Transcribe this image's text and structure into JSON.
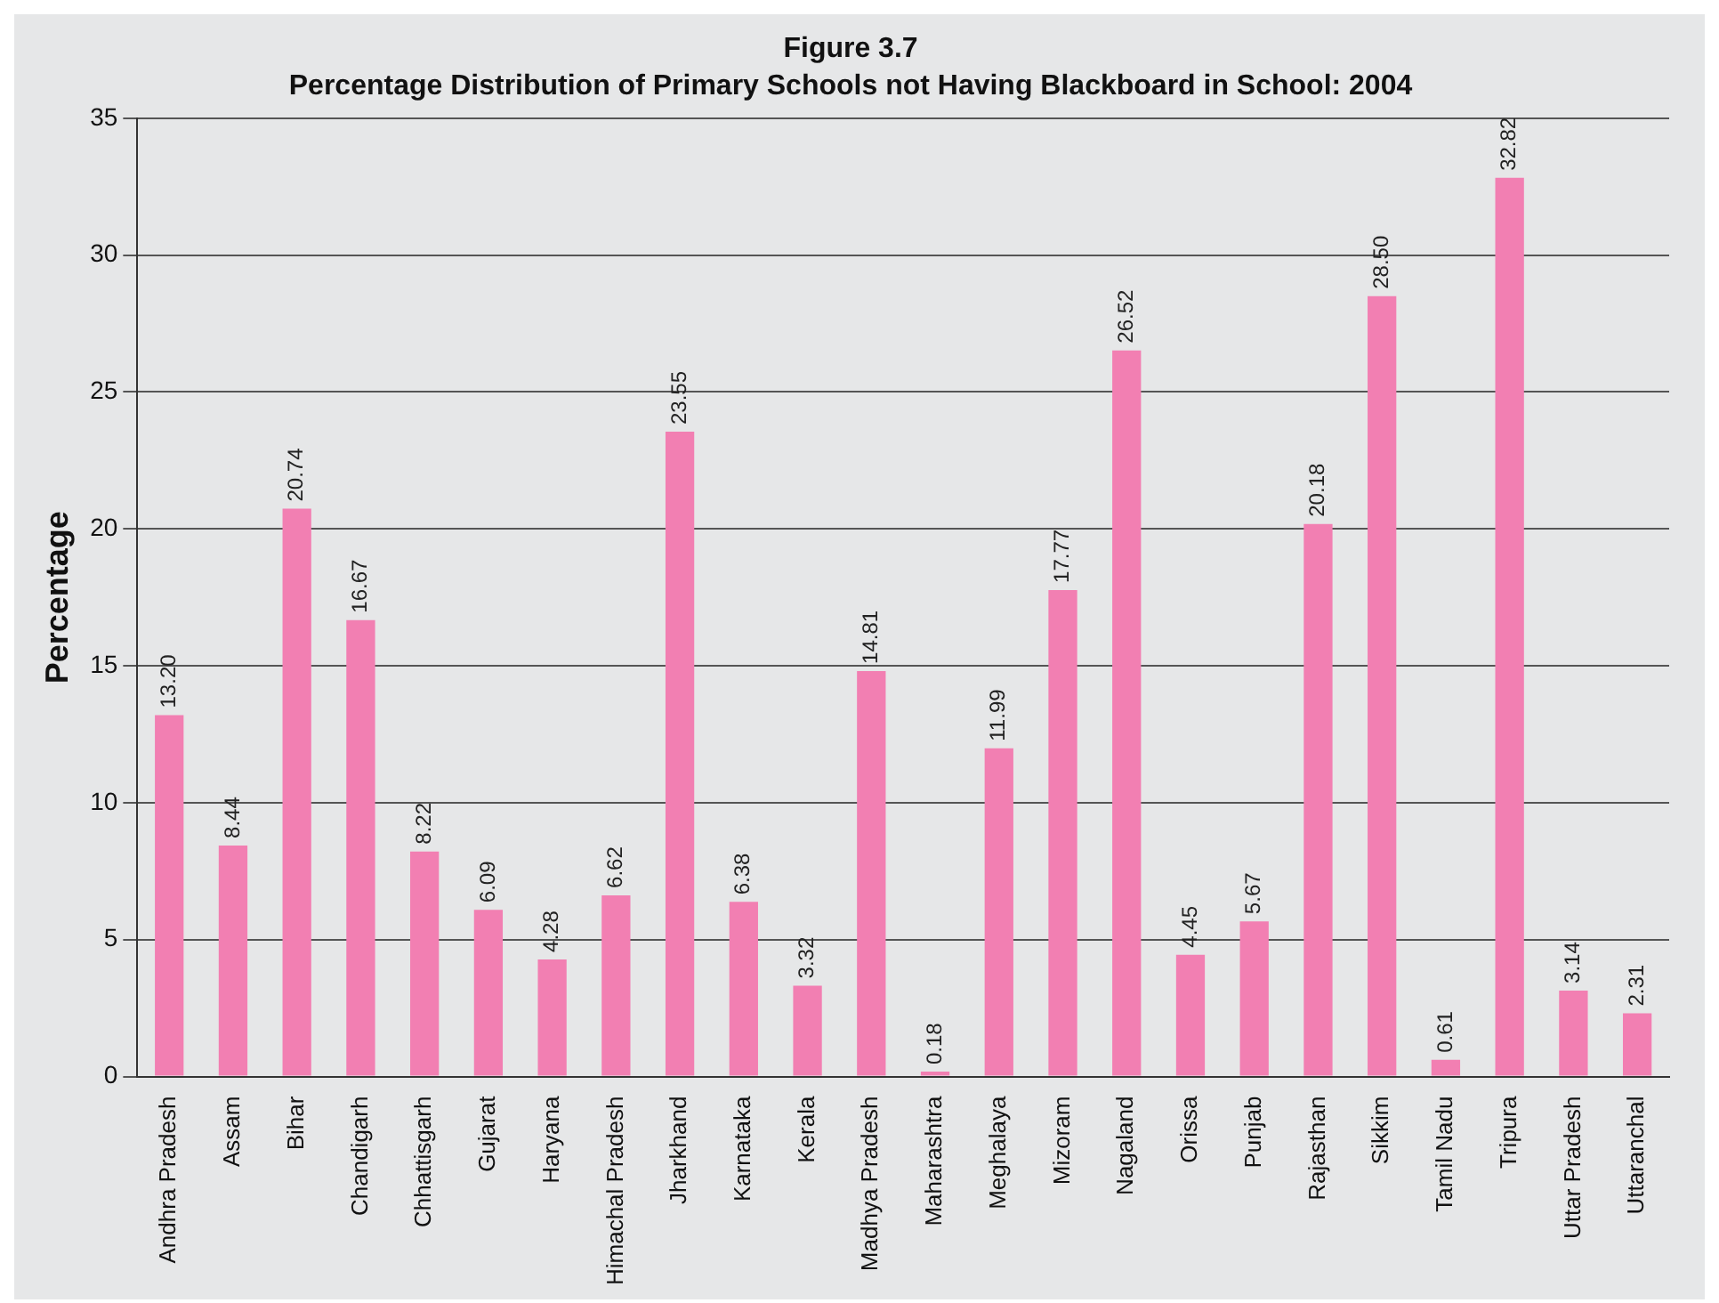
{
  "chart_data": {
    "type": "bar",
    "title": "Figure 3.7",
    "subtitle": "Percentage Distribution of Primary Schools not Having Blackboard in School: 2004",
    "ylabel": "Percentage",
    "categories": [
      "Andhra Pradesh",
      "Assam",
      "Bihar",
      "Chandigarh",
      "Chhattisgarh",
      "Gujarat",
      "Haryana",
      "Himachal Pradesh",
      "Jharkhand",
      "Karnataka",
      "Kerala",
      "Madhya Pradesh",
      "Maharashtra",
      "Meghalaya",
      "Mizoram",
      "Nagaland",
      "Orissa",
      "Punjab",
      "Rajasthan",
      "Sikkim",
      "Tamil Nadu",
      "Tripura",
      "Uttar Pradesh",
      "Uttaranchal"
    ],
    "values": [
      13.2,
      8.44,
      20.74,
      16.67,
      8.22,
      6.09,
      4.28,
      6.62,
      23.55,
      6.38,
      3.32,
      14.81,
      0.18,
      11.99,
      17.77,
      26.52,
      4.45,
      5.67,
      20.18,
      28.5,
      0.61,
      32.82,
      3.14,
      2.31
    ],
    "value_labels": [
      "13.20",
      "8.44",
      "20.74",
      "16.67",
      "8.22",
      "6.09",
      "4.28",
      "6.62",
      "23.55",
      "6.38",
      "3.32",
      "14.81",
      "0.18",
      "11.99",
      "17.77",
      "26.52",
      "4.45",
      "5.67",
      "20.18",
      "28.50",
      "0.61",
      "32.82",
      "3.14",
      "2.31"
    ],
    "color": "#f27fb2",
    "ylim": [
      0,
      35
    ],
    "yticks": [
      0,
      5,
      10,
      15,
      20,
      25,
      30,
      35
    ],
    "grid": "y",
    "legend": false
  }
}
